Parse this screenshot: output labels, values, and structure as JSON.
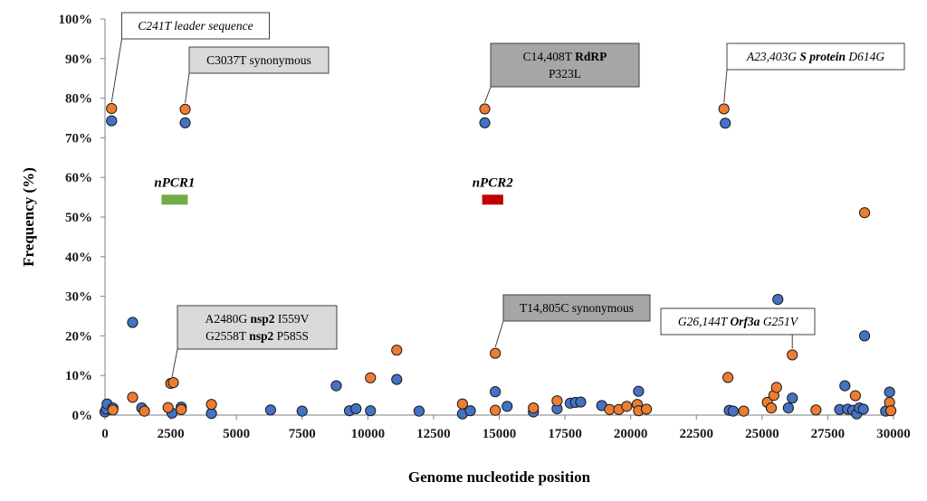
{
  "chart_data": {
    "type": "scatter",
    "title": "",
    "xlabel": "Genome nucleotide position",
    "ylabel": "Frequency (%)",
    "xlim": [
      0,
      30000
    ],
    "ylim": [
      0,
      100
    ],
    "x_ticks": [
      "0",
      "2500",
      "5000",
      "7500",
      "10000",
      "12500",
      "15000",
      "17500",
      "20000",
      "22500",
      "25000",
      "27500",
      "30000"
    ],
    "y_ticks": [
      "0%",
      "10%",
      "20%",
      "30%",
      "40%",
      "50%",
      "60%",
      "70%",
      "80%",
      "90%",
      "100%"
    ],
    "grid": false,
    "legend": "none",
    "colors": {
      "series_a": "#4472C4",
      "series_b": "#ED7D31",
      "nPCR1": "#70AD47",
      "nPCR2": "#C00000"
    },
    "series": [
      {
        "color": "#4472C4",
        "points": [
          [
            0,
            0.8
          ],
          [
            50,
            1.5
          ],
          [
            80,
            2.8
          ],
          [
            250,
            74.3
          ],
          [
            300,
            1.8
          ],
          [
            1050,
            23.4
          ],
          [
            1400,
            1.8
          ],
          [
            2550,
            0.5
          ],
          [
            2900,
            2.0
          ],
          [
            3050,
            73.8
          ],
          [
            4050,
            0.4
          ],
          [
            6300,
            1.3
          ],
          [
            7500,
            1.0
          ],
          [
            8800,
            7.4
          ],
          [
            9300,
            1.1
          ],
          [
            9550,
            1.6
          ],
          [
            10100,
            1.1
          ],
          [
            11100,
            9.0
          ],
          [
            11950,
            1.0
          ],
          [
            13600,
            0.3
          ],
          [
            13900,
            1.1
          ],
          [
            14450,
            73.8
          ],
          [
            14850,
            5.9
          ],
          [
            15300,
            2.2
          ],
          [
            16300,
            0.8
          ],
          [
            17200,
            1.6
          ],
          [
            17700,
            3.0
          ],
          [
            17900,
            3.2
          ],
          [
            18100,
            3.3
          ],
          [
            18900,
            2.4
          ],
          [
            20300,
            6.0
          ],
          [
            23600,
            73.7
          ],
          [
            23750,
            1.2
          ],
          [
            23900,
            1.0
          ],
          [
            25600,
            29.2
          ],
          [
            26000,
            1.8
          ],
          [
            26150,
            4.3
          ],
          [
            27950,
            1.4
          ],
          [
            28150,
            7.4
          ],
          [
            28250,
            1.5
          ],
          [
            28450,
            1.2
          ],
          [
            28600,
            0.3
          ],
          [
            28700,
            1.8
          ],
          [
            28850,
            1.5
          ],
          [
            28900,
            20.0
          ],
          [
            29700,
            1.0
          ],
          [
            29850,
            5.8
          ]
        ]
      },
      {
        "color": "#ED7D31",
        "points": [
          [
            250,
            77.4
          ],
          [
            300,
            1.3
          ],
          [
            1050,
            4.5
          ],
          [
            1500,
            1.0
          ],
          [
            2400,
            1.9
          ],
          [
            2500,
            8.0
          ],
          [
            2600,
            8.2
          ],
          [
            2900,
            1.4
          ],
          [
            3050,
            77.2
          ],
          [
            4050,
            2.7
          ],
          [
            10100,
            9.4
          ],
          [
            11100,
            16.4
          ],
          [
            13600,
            2.8
          ],
          [
            14450,
            77.3
          ],
          [
            14850,
            15.6
          ],
          [
            14850,
            1.2
          ],
          [
            16300,
            1.8
          ],
          [
            17200,
            3.6
          ],
          [
            19200,
            1.4
          ],
          [
            19550,
            1.4
          ],
          [
            19850,
            2.2
          ],
          [
            20250,
            2.7
          ],
          [
            20300,
            1.1
          ],
          [
            20600,
            1.5
          ],
          [
            23550,
            77.3
          ],
          [
            23700,
            9.5
          ],
          [
            24300,
            1.0
          ],
          [
            25200,
            3.2
          ],
          [
            25350,
            1.8
          ],
          [
            25450,
            5.0
          ],
          [
            25550,
            7.0
          ],
          [
            26150,
            15.2
          ],
          [
            27050,
            1.3
          ],
          [
            28550,
            4.9
          ],
          [
            28900,
            51.1
          ],
          [
            29850,
            3.2
          ],
          [
            29900,
            1.1
          ]
        ]
      }
    ],
    "annotations": [
      {
        "style": "white",
        "lines": [
          [
            {
              "text": "C241T leader sequence",
              "bold": false,
              "italic": true
            }
          ]
        ],
        "target": [
          250,
          77.4
        ]
      },
      {
        "style": "lightgray",
        "lines": [
          [
            {
              "text": "C3037T synonymous",
              "bold": false,
              "italic": false
            }
          ]
        ],
        "target": [
          3050,
          77.2
        ]
      },
      {
        "style": "darkgray",
        "lines": [
          [
            {
              "text": "C14,408T ",
              "bold": false,
              "italic": false
            },
            {
              "text": "RdRP",
              "bold": true,
              "italic": false
            }
          ],
          [
            {
              "text": "P323L",
              "bold": false,
              "italic": false
            }
          ]
        ],
        "target": [
          14450,
          77.3
        ]
      },
      {
        "style": "white",
        "lines": [
          [
            {
              "text": "A23,403G ",
              "bold": false,
              "italic": true
            },
            {
              "text": "S protein",
              "bold": true,
              "italic": true
            },
            {
              "text": " D614G",
              "bold": false,
              "italic": true
            }
          ]
        ],
        "target": [
          23550,
          77.3
        ]
      },
      {
        "style": "lightgray",
        "lines": [
          [
            {
              "text": "A2480G ",
              "bold": false,
              "italic": false
            },
            {
              "text": "nsp2",
              "bold": true,
              "italic": false
            },
            {
              "text": " I559V",
              "bold": false,
              "italic": false
            }
          ],
          [
            {
              "text": "G2558T ",
              "bold": false,
              "italic": false
            },
            {
              "text": "nsp2",
              "bold": true,
              "italic": false
            },
            {
              "text": " P585S",
              "bold": false,
              "italic": false
            }
          ]
        ],
        "target": [
          2550,
          8.0
        ]
      },
      {
        "style": "darkgray",
        "lines": [
          [
            {
              "text": "T14,805C synonymous",
              "bold": false,
              "italic": false
            }
          ]
        ],
        "target": [
          14850,
          15.6
        ]
      },
      {
        "style": "white",
        "lines": [
          [
            {
              "text": "G26,144T ",
              "bold": false,
              "italic": true
            },
            {
              "text": "Orf3a",
              "bold": true,
              "italic": true
            },
            {
              "text": " G251V",
              "bold": false,
              "italic": true
            }
          ]
        ],
        "target": [
          26150,
          15.2
        ]
      }
    ],
    "regions": [
      {
        "label": "nPCR1",
        "x_range": [
          2150,
          3150
        ],
        "y": 54.5,
        "color": "#70AD47"
      },
      {
        "label": "nPCR2",
        "x_range": [
          14350,
          15150
        ],
        "y": 54.5,
        "color": "#C00000"
      }
    ]
  }
}
